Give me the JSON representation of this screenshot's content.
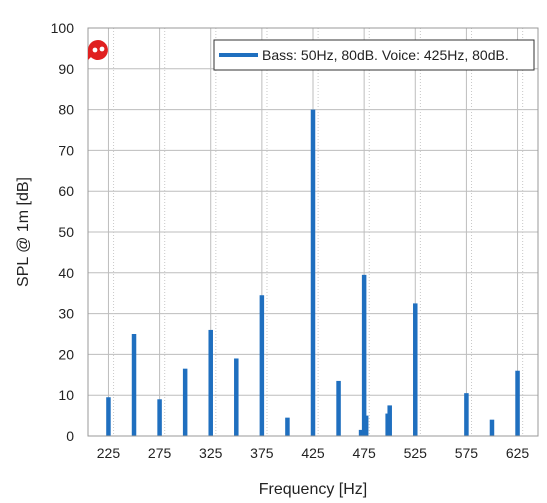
{
  "chart_data": {
    "type": "bar",
    "xlabel": "Frequency [Hz]",
    "ylabel": "SPL @ 1m [dB]",
    "ylim": [
      0,
      100
    ],
    "y_ticks": [
      0,
      10,
      20,
      30,
      40,
      50,
      60,
      70,
      80,
      90,
      100
    ],
    "x_ticks": [
      225,
      275,
      325,
      375,
      425,
      475,
      525,
      575,
      625
    ],
    "grid": true,
    "legend_position": "top-right",
    "series": [
      {
        "name": "Bass: 50Hz, 80dB. Voice: 425Hz, 80dB.",
        "color": "#1f6fbf",
        "x": [
          225,
          250,
          275,
          300,
          325,
          350,
          375,
          400,
          425,
          450,
          472,
          475,
          477,
          498,
          500,
          525,
          575,
          600,
          625
        ],
        "values": [
          9.5,
          25,
          9,
          16.5,
          26,
          19,
          34.5,
          4.5,
          80,
          13.5,
          1.5,
          39.5,
          5,
          5.5,
          7.5,
          32.5,
          10.5,
          4,
          16
        ]
      }
    ]
  },
  "logo": {
    "icon": "brand-logo-icon",
    "color": "#e02020"
  }
}
